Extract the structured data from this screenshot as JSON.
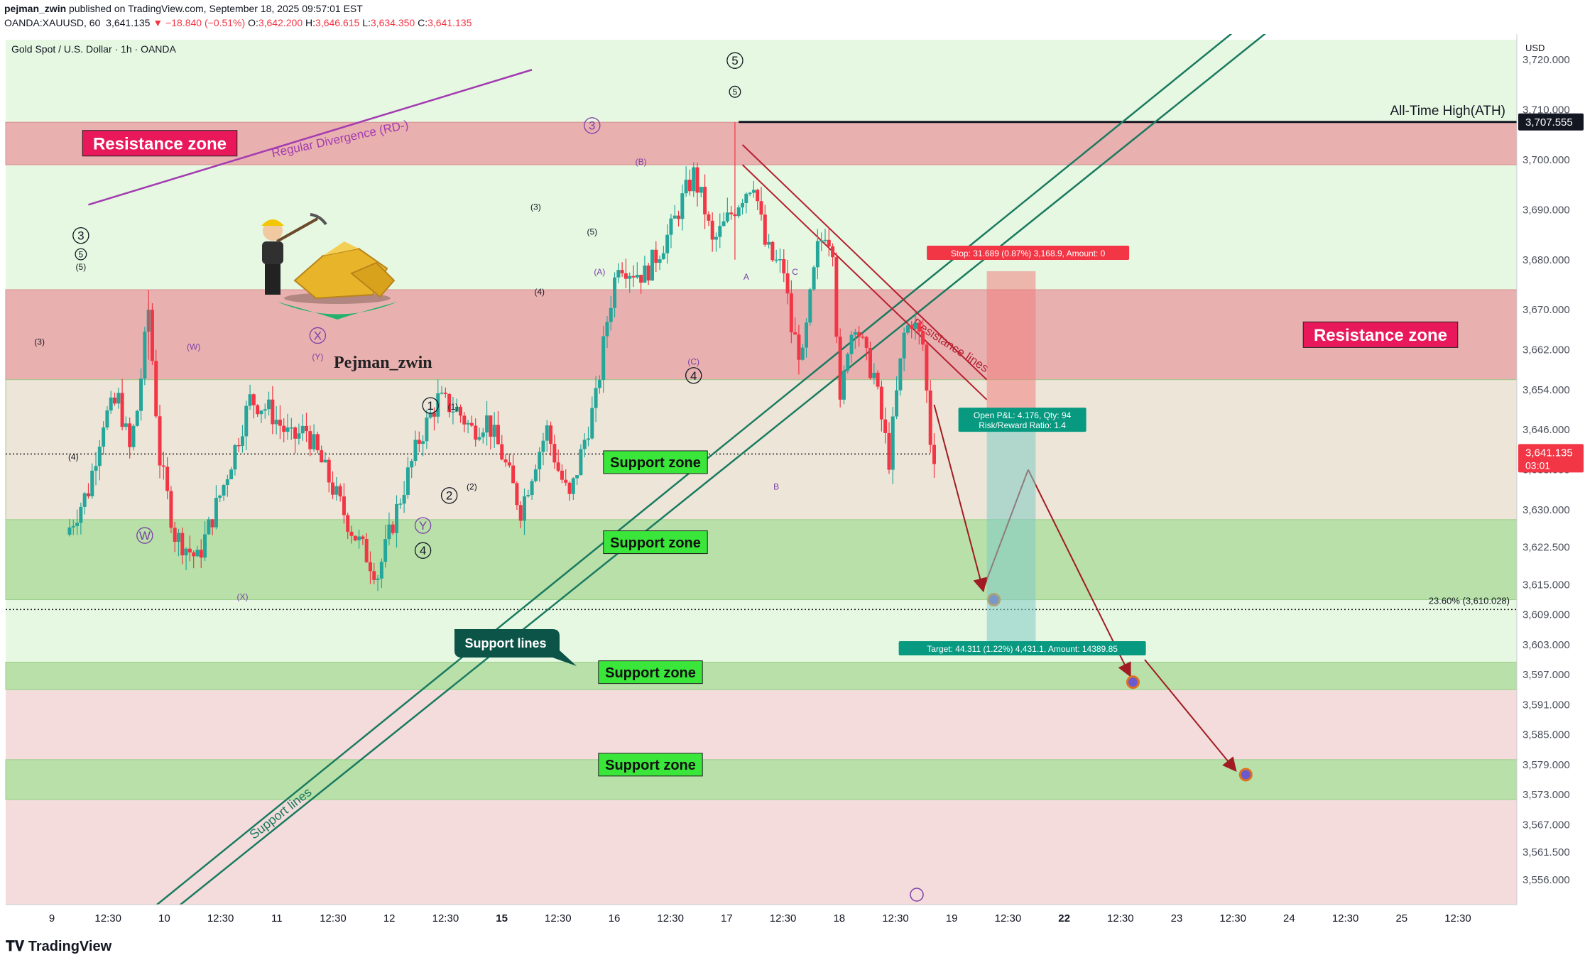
{
  "header": {
    "author": "pejman_zwin",
    "published": "published on TradingView.com, September 18, 2025 09:57:01 EST",
    "symbol": "OANDA:XAUUSD, 60",
    "last": "3,641.135",
    "change": "▼ −18.840 (−0.51%)",
    "o_label": "O:",
    "o": "3,642.200",
    "h_label": "H:",
    "h": "3,646.615",
    "l_label": "L:",
    "l": "3,634.350",
    "c_label": "C:",
    "c": "3,641.135"
  },
  "footer": {
    "logo": "TradingView"
  },
  "colors": {
    "resistance": "#e9b0b0",
    "support": "#b8e0a8",
    "candle_up": "#26a69a",
    "candle_down": "#f23645",
    "price_tag": "#f23645",
    "ath": "#131722",
    "channel": "#1a7a60",
    "divergence": "#a23bb0",
    "resist_line": "#b52030",
    "target_arrow": "#a01b22"
  },
  "chart_data": {
    "type": "candlestick",
    "title": "Gold Spot / U.S. Dollar · 1h · OANDA",
    "currency": "USD",
    "ylim": [
      3551,
      3724
    ],
    "y_ticks": [
      3720,
      3710,
      3700,
      3690,
      3680,
      3670,
      3662,
      3654,
      3646,
      3638,
      3630,
      3622.5,
      3615,
      3609,
      3603,
      3597,
      3591,
      3585,
      3579,
      3573,
      3567,
      3561.5,
      3556
    ],
    "y_tick_labels": [
      "3,720.000",
      "3,710.000",
      "3,700.000",
      "3,690.000",
      "3,680.000",
      "3,670.000",
      "3,662.000",
      "3,654.000",
      "3,646.000",
      "3,638.000",
      "3,630.000",
      "3,622.500",
      "3,615.000",
      "3,609.000",
      "3,603.000",
      "3,597.000",
      "3,591.000",
      "3,585.000",
      "3,579.000",
      "3,573.000",
      "3,567.000",
      "3,561.500",
      "3,556.000"
    ],
    "x_ticks": [
      "9",
      "12:30",
      "10",
      "12:30",
      "11",
      "12:30",
      "12",
      "12:30",
      "15",
      "12:30",
      "16",
      "12:30",
      "17",
      "12:30",
      "18",
      "12:30",
      "19",
      "12:30",
      "22",
      "12:30",
      "23",
      "12:30",
      "24",
      "12:30",
      "25",
      "12:30"
    ],
    "bold_x_ticks": [
      "15",
      "22"
    ],
    "x_range_hours": [
      -16,
      386
    ],
    "path": [
      [
        0,
        3625
      ],
      [
        6,
        3634
      ],
      [
        10,
        3648
      ],
      [
        14,
        3652
      ],
      [
        17,
        3642
      ],
      [
        19,
        3650
      ],
      [
        22,
        3670
      ],
      [
        25,
        3640
      ],
      [
        29,
        3625
      ],
      [
        35,
        3620
      ],
      [
        42,
        3635
      ],
      [
        49,
        3652
      ],
      [
        54,
        3650
      ],
      [
        60,
        3644
      ],
      [
        64,
        3646
      ],
      [
        70,
        3636
      ],
      [
        76,
        3626
      ],
      [
        83,
        3617
      ],
      [
        88,
        3630
      ],
      [
        94,
        3644
      ],
      [
        99,
        3652
      ],
      [
        104,
        3650
      ],
      [
        108,
        3646
      ],
      [
        112,
        3648
      ],
      [
        116,
        3641
      ],
      [
        121,
        3630
      ],
      [
        125,
        3640
      ],
      [
        128,
        3646
      ],
      [
        131,
        3638
      ],
      [
        134,
        3632
      ],
      [
        138,
        3644
      ],
      [
        141,
        3652
      ],
      [
        144,
        3668
      ],
      [
        147,
        3680
      ],
      [
        150,
        3678
      ],
      [
        154,
        3677
      ],
      [
        158,
        3682
      ],
      [
        161,
        3686
      ],
      [
        164,
        3692
      ],
      [
        167,
        3697
      ],
      [
        170,
        3690
      ],
      [
        172,
        3683
      ],
      [
        176,
        3688
      ],
      [
        180,
        3693
      ],
      [
        183,
        3696
      ],
      [
        186,
        3683
      ],
      [
        188,
        3680
      ],
      [
        191,
        3678
      ],
      [
        193,
        3666
      ],
      [
        196,
        3660
      ],
      [
        198,
        3672
      ],
      [
        200,
        3682
      ],
      [
        202,
        3686
      ],
      [
        204,
        3683
      ],
      [
        206,
        3650
      ],
      [
        208,
        3663
      ],
      [
        210,
        3668
      ],
      [
        213,
        3660
      ],
      [
        215,
        3657
      ],
      [
        217,
        3648
      ],
      [
        219,
        3640
      ],
      [
        221,
        3653
      ],
      [
        223,
        3665
      ],
      [
        225,
        3668
      ],
      [
        228,
        3663
      ],
      [
        230,
        3644
      ],
      [
        231,
        3641.135
      ]
    ],
    "last_price": "3,641.135",
    "countdown": "03:01",
    "ath": {
      "price": 3707.555,
      "label": "3,707.555",
      "text": "All-Time High(ATH)"
    },
    "fib": {
      "price": 3610.028,
      "text": "23.60% (3,610.028)"
    },
    "zones": [
      {
        "kind": "resistance",
        "from": 3699,
        "to": 3707.5,
        "label": "Resistance zone"
      },
      {
        "kind": "resistance",
        "from": 3656,
        "to": 3674,
        "label": "Resistance zone"
      },
      {
        "kind": "support",
        "from": 3628,
        "to": 3656,
        "label": "Support zone",
        "style": "beige"
      },
      {
        "kind": "support",
        "from": 3612,
        "to": 3628,
        "label": "Support zone"
      },
      {
        "kind": "support",
        "from": 3594,
        "to": 3599.5,
        "label": "Support zone"
      },
      {
        "kind": "support",
        "from": 3572,
        "to": 3580,
        "label": "Support zone"
      }
    ],
    "channel_lines": [
      {
        "from": [
          -2,
          3535
        ],
        "to": [
          313,
          3727
        ]
      },
      {
        "from": [
          4,
          3535
        ],
        "to": [
          322,
          3727
        ]
      }
    ],
    "channel_label": "Support lines",
    "callout": "Support lines",
    "resistance_lines": [
      {
        "from": [
          180,
          3703
        ],
        "to": [
          245,
          3656
        ]
      },
      {
        "from": [
          180,
          3699
        ],
        "to": [
          245,
          3652
        ]
      }
    ],
    "resistance_label": "Resistance lines",
    "divergence": {
      "from": [
        6,
        3691
      ],
      "to": [
        124,
        3718
      ],
      "label": "Regular Divergence (RD-)"
    },
    "position": {
      "x1": 245,
      "x2": 258,
      "entry": 3646,
      "stop": 3677.7,
      "target": 3601.7,
      "stop_text": "Stop: 31.689 (0.87%) 3,168.9, Amount: 0",
      "target_text": "Target: 44.311 (1.22%) 4,431.1, Amount: 14389.85",
      "pnl_text": "Open P&L: 4.176, Qty: 94",
      "rr_text": "Risk/Reward Ratio: 1.4"
    },
    "forecast": [
      [
        231,
        3651
      ],
      [
        244,
        3614
      ],
      [
        256,
        3638
      ],
      [
        283,
        3597
      ],
      [
        287,
        3600
      ],
      [
        311,
        3578
      ]
    ],
    "targets": [
      [
        245,
        3612
      ],
      [
        282,
        3595.5
      ],
      [
        312,
        3577
      ]
    ],
    "wave_labels": [
      {
        "t": "3",
        "x": 4,
        "y": 3684,
        "circ": true
      },
      {
        "t": "5",
        "x": 4,
        "y": 3680.5,
        "circ": true,
        "small": true
      },
      {
        "t": "(5)",
        "x": 4,
        "y": 3678
      },
      {
        "t": "(3)",
        "x": -7,
        "y": 3663
      },
      {
        "t": "(4)",
        "x": 2,
        "y": 3640
      },
      {
        "t": "W",
        "x": 21,
        "y": 3624,
        "circ": true,
        "purple": true
      },
      {
        "t": "(W)",
        "x": 34,
        "y": 3662,
        "purple": true
      },
      {
        "t": "X",
        "x": 67,
        "y": 3664,
        "circ": true,
        "purple": true
      },
      {
        "t": "(Y)",
        "x": 67,
        "y": 3660,
        "purple": true
      },
      {
        "t": "(X)",
        "x": 47,
        "y": 3612,
        "purple": true
      },
      {
        "t": "Y",
        "x": 95,
        "y": 3626,
        "circ": true,
        "purple": true
      },
      {
        "t": "4",
        "x": 95,
        "y": 3621,
        "circ": true
      },
      {
        "t": "1",
        "x": 97,
        "y": 3650,
        "circ": true
      },
      {
        "t": "(1)",
        "x": 103,
        "y": 3650
      },
      {
        "t": "2",
        "x": 102,
        "y": 3632,
        "circ": true
      },
      {
        "t": "(2)",
        "x": 108,
        "y": 3634
      },
      {
        "t": "(3)",
        "x": 125,
        "y": 3690
      },
      {
        "t": "(4)",
        "x": 126,
        "y": 3673
      },
      {
        "t": "3",
        "x": 140,
        "y": 3706,
        "circ": true,
        "purple": true
      },
      {
        "t": "(5)",
        "x": 140,
        "y": 3685
      },
      {
        "t": "(A)",
        "x": 142,
        "y": 3677,
        "purple": true
      },
      {
        "t": "(B)",
        "x": 153,
        "y": 3699,
        "purple": true
      },
      {
        "t": "(C)",
        "x": 167,
        "y": 3659,
        "purple": true
      },
      {
        "t": "4",
        "x": 167,
        "y": 3656,
        "circ": true
      },
      {
        "t": "5",
        "x": 178,
        "y": 3719,
        "circ": true
      },
      {
        "t": "5",
        "x": 178,
        "y": 3713,
        "circ": true,
        "small": true
      },
      {
        "t": "A",
        "x": 181,
        "y": 3676,
        "purple": true
      },
      {
        "t": "C",
        "x": 194,
        "y": 3677,
        "purple": true
      },
      {
        "t": "B",
        "x": 189,
        "y": 3634,
        "purple": true
      }
    ],
    "logo_text": "Pejman_zwin"
  }
}
